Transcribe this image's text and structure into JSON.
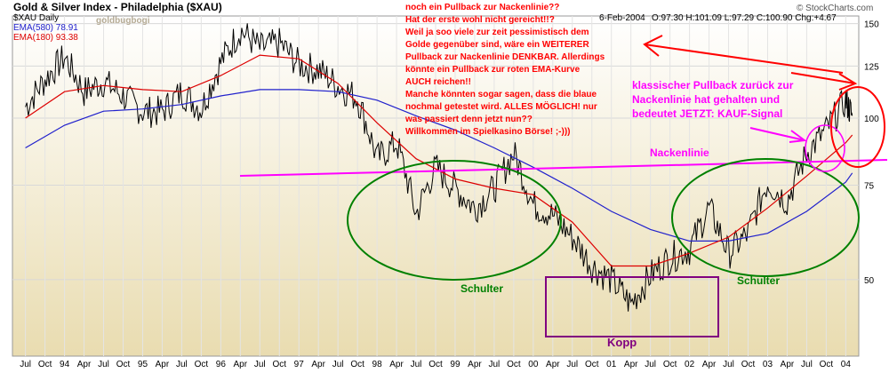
{
  "header": {
    "title": "Gold & Silver Index - Philadelphia ($XAU)",
    "symbol_line": "$XAU Daily",
    "ema_short_label": "EMA(580) 78.91",
    "ema_long_label": "EMA(180) 93.38",
    "watermark": "goldbugbogi",
    "date": "6-Feb-2004",
    "ohlc": "O:97.30 H:101.09 L:97.29 C:100.90 Chg:+4.67",
    "copyright": "© StockCharts.com"
  },
  "annotations": {
    "red_note": [
      "noch ein Pullback zur Nackenlinie??",
      "Hat der erste wohl nicht gereicht!!?",
      "Weil ja soo viele zur zeit pessimistisch dem",
      "Golde gegenüber sind, wäre ein WEITERER",
      "Pullback zur Nackenlinie DENKBAR. Allerdings",
      "könnte ein Pullback zur roten EMA-Kurve",
      "AUCH reichen!!",
      "Manche könnten sogar sagen, dass die blaue",
      "nochmal getestet wird. ALLES MÖGLICH! nur",
      "was passiert denn jetzt nun??",
      "Willkommen im Spielkasino Börse! ;-)))"
    ],
    "magenta_note": [
      "klassischer Pullback zurück zur",
      "Nackenlinie  hat gehalten und",
      "bedeutet JETZT: KAUF-Signal"
    ],
    "neckline_label": "Nackenlinie",
    "shoulder_left_label": "Schulter",
    "shoulder_right_label": "Schulter",
    "head_label": "Kopp"
  },
  "colors": {
    "price": "#000000",
    "ema_short": "#2020cc",
    "ema_long": "#dd0000",
    "neckline": "#ff00ff",
    "shoulders": "#008000",
    "head_box": "#800080",
    "red_text": "#ff0000",
    "magenta_text": "#ff00ff",
    "plot_top": "#ffffff",
    "plot_bottom": "#e9dcb0"
  },
  "chart_data": {
    "type": "line",
    "ylim": [
      36,
      155
    ],
    "y_ticks": [
      50,
      75,
      100,
      125,
      150
    ],
    "y_scale": "log",
    "x_tick_labels": [
      "Jul",
      "Oct",
      "94",
      "Apr",
      "Jul",
      "Oct",
      "95",
      "Apr",
      "Jul",
      "Oct",
      "96",
      "Apr",
      "Jul",
      "Oct",
      "97",
      "Apr",
      "Jul",
      "Oct",
      "98",
      "Apr",
      "Jul",
      "Oct",
      "99",
      "Apr",
      "Jul",
      "Oct",
      "00",
      "Apr",
      "Jul",
      "Oct",
      "01",
      "Apr",
      "Jul",
      "Oct",
      "02",
      "Apr",
      "Jul",
      "Oct",
      "03",
      "Apr",
      "Jul",
      "Oct",
      "04"
    ],
    "price_series": {
      "x": [
        "1993-07",
        "1993-10",
        "1994-01",
        "1994-04",
        "1994-07",
        "1994-10",
        "1995-01",
        "1995-04",
        "1995-07",
        "1995-10",
        "1996-01",
        "1996-04",
        "1996-07",
        "1996-10",
        "1997-01",
        "1997-04",
        "1997-07",
        "1997-10",
        "1998-01",
        "1998-04",
        "1998-07",
        "1998-10",
        "1999-01",
        "1999-04",
        "1999-07",
        "1999-10",
        "2000-01",
        "2000-04",
        "2000-07",
        "2000-10",
        "2001-01",
        "2001-04",
        "2001-07",
        "2001-10",
        "2002-01",
        "2002-04",
        "2002-07",
        "2002-10",
        "2003-01",
        "2003-04",
        "2003-07",
        "2003-10",
        "2004-01",
        "2004-02"
      ],
      "values": [
        105,
        118,
        130,
        112,
        117,
        110,
        103,
        103,
        112,
        104,
        127,
        146,
        135,
        138,
        126,
        123,
        115,
        109,
        84,
        90,
        66,
        81,
        74,
        68,
        74,
        86,
        69,
        66,
        60,
        53,
        50,
        45,
        51,
        55,
        57,
        68,
        56,
        61,
        76,
        70,
        86,
        95,
        108,
        101
      ]
    },
    "ema_short_series": {
      "x": [
        "1993-07",
        "1994-01",
        "1994-07",
        "1995-01",
        "1995-07",
        "1996-01",
        "1996-07",
        "1997-01",
        "1997-07",
        "1998-01",
        "1998-07",
        "1999-01",
        "1999-07",
        "2000-01",
        "2000-07",
        "2001-01",
        "2001-07",
        "2002-01",
        "2002-07",
        "2003-01",
        "2003-07",
        "2004-01",
        "2004-02"
      ],
      "values": [
        88,
        97,
        103,
        104,
        106,
        110,
        113,
        113,
        112,
        108,
        101,
        95,
        88,
        81,
        74,
        67,
        62,
        59,
        59,
        61,
        67,
        76,
        79
      ]
    },
    "ema_long_series": {
      "x": [
        "1993-07",
        "1994-01",
        "1994-07",
        "1995-01",
        "1995-07",
        "1996-01",
        "1996-07",
        "1997-01",
        "1997-07",
        "1998-01",
        "1998-07",
        "1999-01",
        "1999-07",
        "2000-01",
        "2000-07",
        "2001-01",
        "2001-07",
        "2002-01",
        "2002-07",
        "2003-01",
        "2003-07",
        "2004-01",
        "2004-02"
      ],
      "values": [
        100,
        112,
        115,
        113,
        112,
        120,
        131,
        129,
        116,
        98,
        84,
        77,
        74,
        72,
        64,
        53,
        53,
        56,
        60,
        68,
        78,
        90,
        93
      ]
    }
  }
}
